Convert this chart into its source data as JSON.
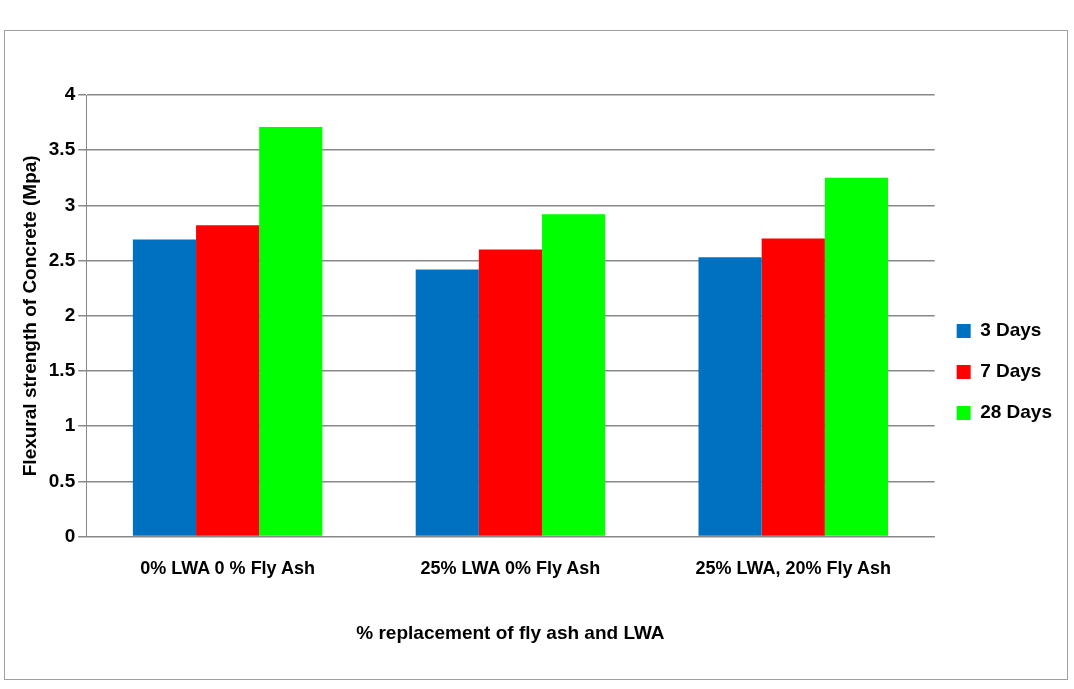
{
  "chart_data": {
    "type": "bar",
    "xlabel": "% replacement of fly ash and LWA",
    "ylabel": "Flexural strength of Concrete (Mpa)",
    "categories": [
      "0% LWA 0 % Fly Ash",
      "25% LWA 0% Fly Ash",
      "25% LWA, 20% Fly Ash"
    ],
    "series": [
      {
        "name": "3 Days",
        "color": "#0070c0",
        "values": [
          2.69,
          2.42,
          2.53
        ]
      },
      {
        "name": "7 Days",
        "color": "#ff0000",
        "values": [
          2.82,
          2.6,
          2.7
        ]
      },
      {
        "name": "28 Days",
        "color": "#00ff00",
        "values": [
          3.71,
          2.92,
          3.25
        ]
      }
    ],
    "ylim": [
      0,
      4
    ],
    "yticks": [
      0,
      0.5,
      1,
      1.5,
      2,
      2.5,
      3,
      3.5,
      4
    ],
    "grid": "y",
    "legend": "right"
  }
}
